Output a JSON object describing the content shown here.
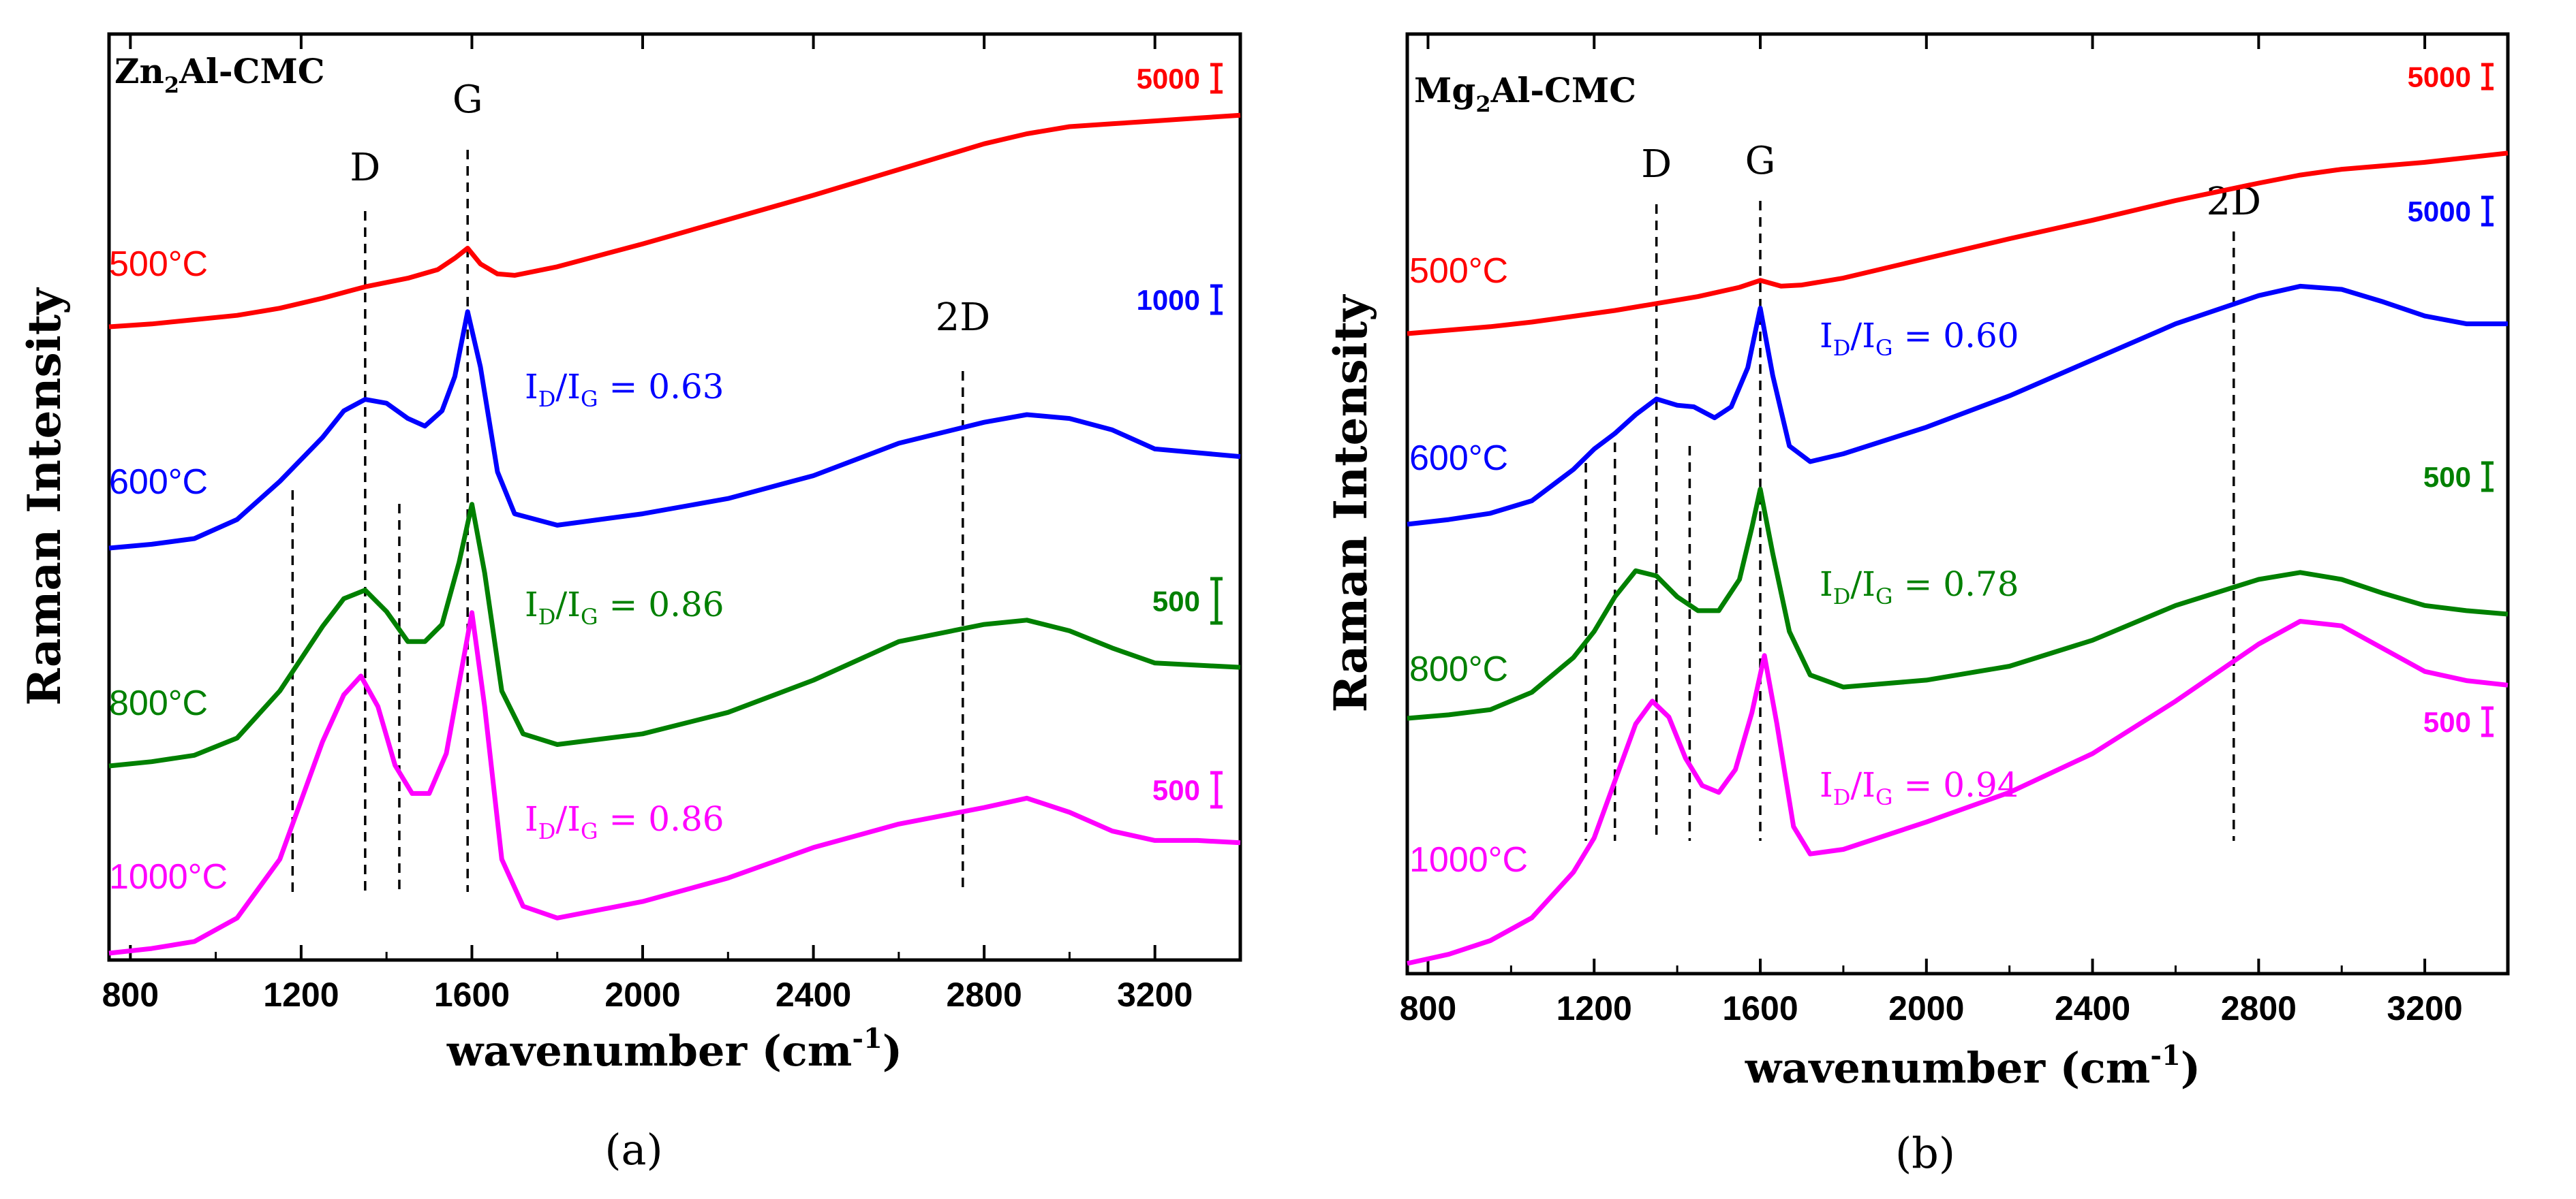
{
  "chart_data": [
    {
      "id": "a",
      "type": "line",
      "panel_label": "(a)",
      "title": "Zn2Al-CMC",
      "title_main": "Zn",
      "title_sub": "2",
      "title_rest": "Al-CMC",
      "xlabel": "wavenumber (cm-1)",
      "xlabel_main": "wavenumber (cm",
      "xlabel_sup": "-1",
      "xlabel_close": ")",
      "ylabel": "Raman Intensity",
      "xlim": [
        750,
        3400
      ],
      "xticks": [
        800,
        1200,
        1600,
        2000,
        2400,
        2800,
        3200
      ],
      "grid": false,
      "peak_labels": [
        {
          "text": "D",
          "x": 1350
        },
        {
          "text": "G",
          "x": 1590
        },
        {
          "text": "2D",
          "x": 2750
        }
      ],
      "extra_dashed_x": [
        1180,
        1430
      ],
      "series": [
        {
          "name": "500°C",
          "color": "#ff0000",
          "scale_bar": "5000",
          "ratio": null,
          "x": [
            750,
            850,
            950,
            1050,
            1150,
            1250,
            1350,
            1450,
            1520,
            1560,
            1590,
            1620,
            1660,
            1700,
            1800,
            2000,
            2200,
            2400,
            2600,
            2800,
            2900,
            3000,
            3100,
            3200,
            3300,
            3400
          ],
          "y": [
            0.0,
            0.02,
            0.05,
            0.08,
            0.13,
            0.2,
            0.28,
            0.34,
            0.4,
            0.48,
            0.55,
            0.44,
            0.37,
            0.36,
            0.42,
            0.58,
            0.75,
            0.92,
            1.1,
            1.28,
            1.35,
            1.4,
            1.42,
            1.44,
            1.46,
            1.48
          ]
        },
        {
          "name": "600°C",
          "color": "#0000ff",
          "scale_bar": "1000",
          "ratio": "0.63",
          "x": [
            750,
            850,
            950,
            1050,
            1150,
            1250,
            1300,
            1350,
            1400,
            1450,
            1490,
            1530,
            1560,
            1590,
            1620,
            1660,
            1700,
            1800,
            2000,
            2200,
            2400,
            2600,
            2800,
            2900,
            3000,
            3100,
            3200,
            3300,
            3400
          ],
          "y": [
            0.0,
            0.02,
            0.05,
            0.15,
            0.35,
            0.58,
            0.72,
            0.78,
            0.76,
            0.68,
            0.64,
            0.72,
            0.9,
            1.24,
            0.95,
            0.4,
            0.18,
            0.12,
            0.18,
            0.26,
            0.38,
            0.55,
            0.66,
            0.7,
            0.68,
            0.62,
            0.52,
            0.5,
            0.48
          ]
        },
        {
          "name": "800°C",
          "color": "#008000",
          "scale_bar": "500",
          "ratio": "0.86",
          "x": [
            750,
            850,
            950,
            1050,
            1150,
            1250,
            1300,
            1350,
            1400,
            1450,
            1490,
            1530,
            1570,
            1600,
            1630,
            1670,
            1720,
            1800,
            2000,
            2200,
            2400,
            2600,
            2800,
            2900,
            3000,
            3100,
            3200,
            3300,
            3400
          ],
          "y": [
            0.0,
            0.02,
            0.05,
            0.13,
            0.35,
            0.65,
            0.78,
            0.82,
            0.72,
            0.58,
            0.58,
            0.66,
            0.95,
            1.22,
            0.9,
            0.35,
            0.15,
            0.1,
            0.15,
            0.25,
            0.4,
            0.58,
            0.66,
            0.68,
            0.63,
            0.55,
            0.48,
            0.47,
            0.46
          ]
        },
        {
          "name": "1000°C",
          "color": "#ff00ff",
          "scale_bar": "500",
          "ratio": "0.86",
          "x": [
            750,
            850,
            950,
            1050,
            1150,
            1250,
            1300,
            1340,
            1380,
            1420,
            1460,
            1500,
            1540,
            1570,
            1600,
            1630,
            1670,
            1720,
            1800,
            2000,
            2200,
            2400,
            2600,
            2800,
            2900,
            3000,
            3100,
            3200,
            3300,
            3400
          ],
          "y": [
            0.0,
            0.02,
            0.05,
            0.15,
            0.4,
            0.9,
            1.1,
            1.18,
            1.05,
            0.8,
            0.68,
            0.68,
            0.85,
            1.15,
            1.45,
            1.05,
            0.4,
            0.2,
            0.15,
            0.22,
            0.32,
            0.45,
            0.55,
            0.62,
            0.66,
            0.6,
            0.52,
            0.48,
            0.48,
            0.47
          ]
        }
      ]
    },
    {
      "id": "b",
      "type": "line",
      "panel_label": "(b)",
      "title": "Mg2Al-CMC",
      "title_main": "Mg",
      "title_sub": "2",
      "title_rest": "Al-CMC",
      "xlabel": "wavenumber (cm-1)",
      "xlabel_main": "wavenumber (cm",
      "xlabel_sup": "-1",
      "xlabel_close": ")",
      "ylabel": "Raman Intensity",
      "xlim": [
        750,
        3400
      ],
      "xticks": [
        800,
        1200,
        1600,
        2000,
        2400,
        2800,
        3200
      ],
      "grid": false,
      "peak_labels": [
        {
          "text": "D",
          "x": 1350
        },
        {
          "text": "G",
          "x": 1600
        },
        {
          "text": "2D",
          "x": 2740
        }
      ],
      "extra_dashed_x": [
        1180,
        1250,
        1430
      ],
      "series": [
        {
          "name": "500°C",
          "color": "#ff0000",
          "scale_bar": "5000",
          "ratio": null,
          "x": [
            750,
            850,
            950,
            1050,
            1150,
            1250,
            1350,
            1450,
            1550,
            1600,
            1650,
            1700,
            1800,
            2000,
            2200,
            2400,
            2600,
            2800,
            2900,
            3000,
            3100,
            3200,
            3300,
            3400
          ],
          "y": [
            0.0,
            0.03,
            0.06,
            0.1,
            0.15,
            0.2,
            0.26,
            0.32,
            0.4,
            0.46,
            0.41,
            0.42,
            0.48,
            0.65,
            0.82,
            0.98,
            1.15,
            1.3,
            1.37,
            1.42,
            1.45,
            1.48,
            1.52,
            1.56
          ]
        },
        {
          "name": "600°C",
          "color": "#0000ff",
          "scale_bar": "5000",
          "ratio": "0.60",
          "x": [
            750,
            850,
            950,
            1050,
            1150,
            1200,
            1250,
            1300,
            1350,
            1400,
            1440,
            1490,
            1530,
            1570,
            1600,
            1630,
            1670,
            1720,
            1800,
            2000,
            2200,
            2400,
            2600,
            2800,
            2900,
            3000,
            3100,
            3200,
            3300,
            3400
          ],
          "y": [
            0.0,
            0.03,
            0.07,
            0.15,
            0.35,
            0.48,
            0.58,
            0.7,
            0.8,
            0.76,
            0.75,
            0.68,
            0.75,
            1.0,
            1.38,
            0.95,
            0.5,
            0.4,
            0.45,
            0.62,
            0.82,
            1.05,
            1.28,
            1.46,
            1.52,
            1.5,
            1.42,
            1.33,
            1.28,
            1.28
          ]
        },
        {
          "name": "800°C",
          "color": "#008000",
          "scale_bar": "500",
          "ratio": "0.78",
          "x": [
            750,
            850,
            950,
            1050,
            1150,
            1200,
            1250,
            1300,
            1350,
            1400,
            1450,
            1500,
            1550,
            1580,
            1600,
            1630,
            1670,
            1720,
            1800,
            2000,
            2200,
            2400,
            2600,
            2800,
            2900,
            3000,
            3100,
            3200,
            3300,
            3400
          ],
          "y": [
            0.0,
            0.02,
            0.05,
            0.15,
            0.35,
            0.5,
            0.7,
            0.85,
            0.82,
            0.7,
            0.62,
            0.62,
            0.8,
            1.1,
            1.32,
            0.95,
            0.5,
            0.25,
            0.18,
            0.22,
            0.3,
            0.45,
            0.65,
            0.8,
            0.84,
            0.8,
            0.72,
            0.65,
            0.62,
            0.6
          ]
        },
        {
          "name": "1000°C",
          "color": "#ff00ff",
          "scale_bar": "500",
          "ratio": "0.94",
          "x": [
            750,
            850,
            950,
            1050,
            1150,
            1200,
            1250,
            1300,
            1340,
            1380,
            1420,
            1460,
            1500,
            1540,
            1580,
            1610,
            1640,
            1680,
            1720,
            1800,
            2000,
            2200,
            2400,
            2600,
            2800,
            2900,
            3000,
            3100,
            3200,
            3300,
            3400
          ],
          "y": [
            0.0,
            0.04,
            0.1,
            0.2,
            0.4,
            0.55,
            0.8,
            1.05,
            1.15,
            1.08,
            0.9,
            0.78,
            0.75,
            0.85,
            1.1,
            1.35,
            1.05,
            0.6,
            0.48,
            0.5,
            0.62,
            0.75,
            0.92,
            1.15,
            1.4,
            1.5,
            1.48,
            1.38,
            1.28,
            1.24,
            1.22
          ]
        }
      ]
    }
  ]
}
